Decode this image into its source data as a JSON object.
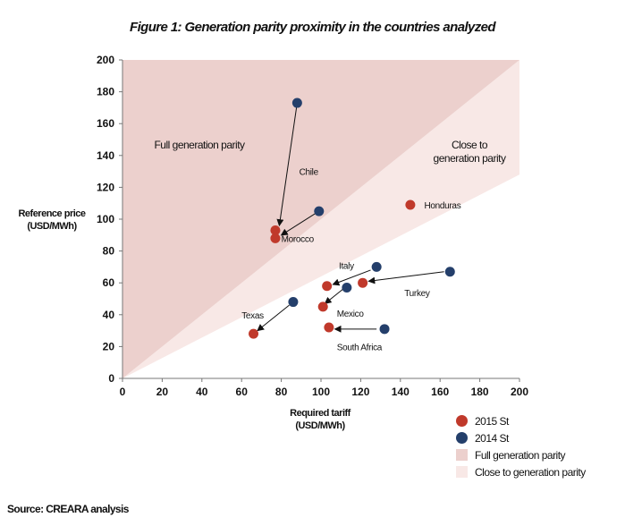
{
  "title": "Figure 1: Generation parity proximity in the countries analyzed",
  "source": "Source: CREARA analysis",
  "colors": {
    "series_2015": "#c0392b",
    "series_2014": "#243f6b",
    "full_parity": "#ecd0cd",
    "close_parity": "#f8e8e6",
    "arrow": "#111111"
  },
  "chart_data": {
    "type": "scatter",
    "title": "Figure 1: Generation parity proximity in the countries analyzed",
    "xlabel": [
      "Required tariff",
      "(USD/MWh)"
    ],
    "ylabel": [
      "Reference price",
      "(USD/MWh)"
    ],
    "xlim": [
      0,
      200
    ],
    "ylim": [
      0,
      200
    ],
    "x_ticks": [
      "0",
      "20",
      "40",
      "60",
      "80",
      "100",
      "120",
      "140",
      "160",
      "180",
      "200"
    ],
    "y_ticks": [
      "0",
      "20",
      "40",
      "60",
      "80",
      "100",
      "120",
      "140",
      "160",
      "180",
      "200"
    ],
    "grid": false,
    "regions": [
      {
        "name": "Full generation parity",
        "label_lines": [
          "Full generation parity"
        ],
        "boundary": "y = x"
      },
      {
        "name": "Close to generation parity",
        "label_lines": [
          "Close to",
          "generation parity"
        ],
        "boundary_slope": 0.64
      }
    ],
    "series": [
      {
        "name": "2015 St",
        "key": "series_2015",
        "points": [
          {
            "label": "Chile",
            "x": 77,
            "y": 93
          },
          {
            "label": "Morocco",
            "x": 77,
            "y": 88
          },
          {
            "label": "Honduras",
            "x": 145,
            "y": 109
          },
          {
            "label": "Italy",
            "x": 103,
            "y": 58
          },
          {
            "label": "Turkey",
            "x": 121,
            "y": 60
          },
          {
            "label": "Mexico",
            "x": 101,
            "y": 45
          },
          {
            "label": "South Africa",
            "x": 104,
            "y": 32
          },
          {
            "label": "Texas",
            "x": 66,
            "y": 28
          }
        ]
      },
      {
        "name": "2014 St",
        "key": "series_2014",
        "points": [
          {
            "label": "Chile",
            "x": 88,
            "y": 173
          },
          {
            "label": "Morocco",
            "x": 99,
            "y": 105
          },
          {
            "label": "Italy",
            "x": 128,
            "y": 70
          },
          {
            "label": "Turkey",
            "x": 165,
            "y": 67
          },
          {
            "label": "Mexico",
            "x": 113,
            "y": 57
          },
          {
            "label": "South Africa",
            "x": 132,
            "y": 31
          },
          {
            "label": "Texas",
            "x": 86,
            "y": 48
          }
        ]
      }
    ],
    "point_labels": [
      {
        "text": "Chile",
        "x": 89,
        "y": 130
      },
      {
        "text": "Morocco",
        "x": 80,
        "y": 88
      },
      {
        "text": "Honduras",
        "x": 152,
        "y": 109
      },
      {
        "text": "Italy",
        "x": 109,
        "y": 71
      },
      {
        "text": "Turkey",
        "x": 142,
        "y": 54
      },
      {
        "text": "Mexico",
        "x": 108,
        "y": 41
      },
      {
        "text": "South Africa",
        "x": 108,
        "y": 20
      },
      {
        "text": "Texas",
        "x": 60,
        "y": 40
      }
    ],
    "movements": [
      {
        "country": "Chile",
        "from": [
          88,
          173
        ],
        "to": [
          79,
          96
        ]
      },
      {
        "country": "Morocco",
        "from": [
          99,
          105
        ],
        "to": [
          80,
          90
        ]
      },
      {
        "country": "Italy",
        "from": [
          125,
          68
        ],
        "to": [
          106,
          59
        ]
      },
      {
        "country": "Turkey",
        "from": [
          162,
          67
        ],
        "to": [
          124,
          61
        ]
      },
      {
        "country": "Mexico",
        "from": [
          111,
          56
        ],
        "to": [
          102,
          47
        ]
      },
      {
        "country": "South Africa",
        "from": [
          128,
          31
        ],
        "to": [
          107,
          31
        ]
      },
      {
        "country": "Texas",
        "from": [
          84,
          46
        ],
        "to": [
          68,
          30
        ]
      }
    ],
    "legend": [
      {
        "kind": "dot",
        "key": "series_2015",
        "text": "2015 St"
      },
      {
        "kind": "dot",
        "key": "series_2014",
        "text": "2014 St"
      },
      {
        "kind": "square",
        "key": "full_parity",
        "text": "Full generation parity"
      },
      {
        "kind": "square",
        "key": "close_parity",
        "text": "Close to generation parity"
      }
    ],
    "legend_position": "bottom-right"
  }
}
